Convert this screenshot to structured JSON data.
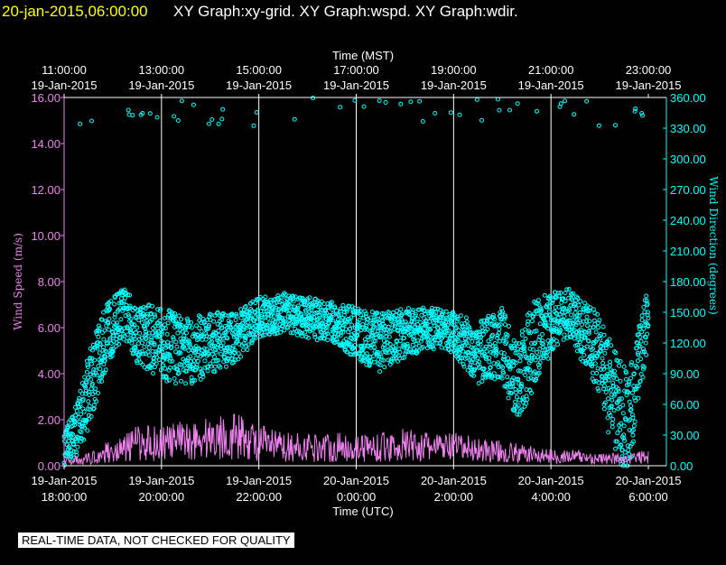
{
  "header": {
    "timestamp": "20-jan-2015,06:00:00",
    "title": "XY Graph:xy-grid.  XY Graph:wspd.  XY Graph:wdir."
  },
  "disclaimer": "REAL-TIME DATA, NOT CHECKED FOR QUALITY",
  "colors": {
    "background": "#000000",
    "wind_speed": "#ee82ee",
    "wind_direction": "#00ffff",
    "grid": "#ffffff",
    "header_date": "#ffff00"
  },
  "chart_data": {
    "type": "scatter",
    "title": "",
    "grid": true,
    "x_axis_top": {
      "label": "Time (MST)",
      "ticks": [
        {
          "time": "11:00:00",
          "date": "19-Jan-2015"
        },
        {
          "time": "13:00:00",
          "date": "19-Jan-2015"
        },
        {
          "time": "15:00:00",
          "date": "19-Jan-2015"
        },
        {
          "time": "17:00:00",
          "date": "19-Jan-2015"
        },
        {
          "time": "19:00:00",
          "date": "19-Jan-2015"
        },
        {
          "time": "21:00:00",
          "date": "19-Jan-2015"
        },
        {
          "time": "23:00:00",
          "date": "19-Jan-2015"
        }
      ]
    },
    "x_axis_bottom": {
      "label": "Time (UTC)",
      "ticks": [
        {
          "date": "19-Jan-2015",
          "time": "18:00:00"
        },
        {
          "date": "19-Jan-2015",
          "time": "20:00:00"
        },
        {
          "date": "19-Jan-2015",
          "time": "22:00:00"
        },
        {
          "date": "20-Jan-2015",
          "time": "0:00:00"
        },
        {
          "date": "20-Jan-2015",
          "time": "2:00:00"
        },
        {
          "date": "20-Jan-2015",
          "time": "4:00:00"
        },
        {
          "date": "20-Jan-2015",
          "time": "6:00:00"
        }
      ]
    },
    "y_axis_left": {
      "label": "Wind Speed (m/s)",
      "ylim": [
        0,
        16
      ],
      "ticks": [
        "0.00",
        "2.00",
        "4.00",
        "6.00",
        "8.00",
        "10.00",
        "12.00",
        "14.00",
        "16.00"
      ]
    },
    "y_axis_right": {
      "label": "Wind Direction (degrees)",
      "ylim": [
        0,
        360
      ],
      "ticks": [
        "0.00",
        "30.00",
        "60.00",
        "90.00",
        "120.00",
        "150.00",
        "180.00",
        "210.00",
        "240.00",
        "270.00",
        "300.00",
        "330.00",
        "360.00"
      ]
    },
    "x_range_utc_hours": [
      18,
      30
    ],
    "series": [
      {
        "name": "wspd",
        "kind": "line",
        "x_utc_hours": [
          18.0,
          18.5,
          18.9,
          19.2,
          19.5,
          20.0,
          20.5,
          21.0,
          21.5,
          22.0,
          22.5,
          23.0,
          23.5,
          24.0,
          24.5,
          25.0,
          25.5,
          26.0,
          26.5,
          27.0,
          27.5,
          28.0,
          28.5,
          29.0,
          29.5,
          30.0
        ],
        "values": [
          0.2,
          0.3,
          0.6,
          0.7,
          1.0,
          1.0,
          1.1,
          1.2,
          1.3,
          1.0,
          0.8,
          0.8,
          0.8,
          0.8,
          0.8,
          0.9,
          0.8,
          0.8,
          0.7,
          0.6,
          0.5,
          0.4,
          0.4,
          0.3,
          0.3,
          0.4
        ]
      },
      {
        "name": "wdir",
        "kind": "scatter",
        "x_utc_hours": [
          18.0,
          18.3,
          18.6,
          18.9,
          19.2,
          19.5,
          20.0,
          20.5,
          21.0,
          21.5,
          22.0,
          22.5,
          23.0,
          23.5,
          24.0,
          24.5,
          25.0,
          25.5,
          26.0,
          26.5,
          27.0,
          27.3,
          27.6,
          28.0,
          28.3,
          28.6,
          29.0,
          29.3,
          29.6,
          30.0
        ],
        "values": [
          15,
          40,
          90,
          130,
          150,
          130,
          120,
          110,
          120,
          125,
          145,
          150,
          145,
          140,
          130,
          120,
          130,
          135,
          130,
          110,
          120,
          80,
          115,
          140,
          150,
          135,
          110,
          60,
          40,
          150
        ],
        "spread": [
          15,
          30,
          40,
          30,
          25,
          30,
          35,
          35,
          30,
          25,
          20,
          20,
          20,
          20,
          25,
          30,
          25,
          20,
          20,
          30,
          35,
          40,
          45,
          30,
          25,
          30,
          40,
          55,
          50,
          30
        ]
      }
    ]
  }
}
